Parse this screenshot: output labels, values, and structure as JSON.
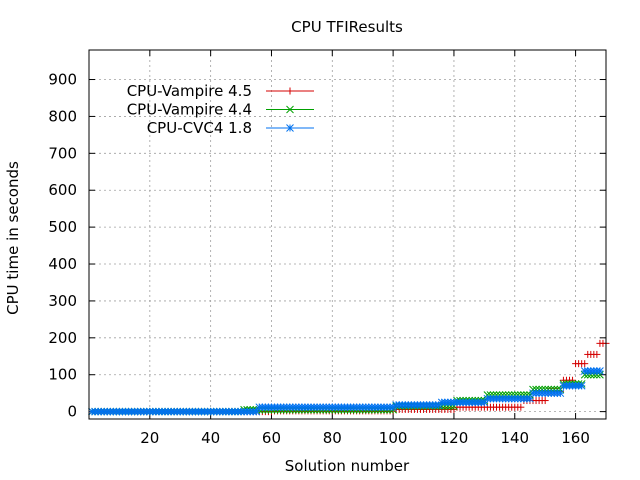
{
  "chart_data": {
    "type": "scatter",
    "title": "CPU TFIResults",
    "xlabel": "Solution number",
    "ylabel": "CPU time in seconds",
    "xlim": [
      0,
      170
    ],
    "ylim": [
      -20,
      980
    ],
    "xticks": [
      20,
      40,
      60,
      80,
      100,
      120,
      140,
      160
    ],
    "yticks": [
      0,
      100,
      200,
      300,
      400,
      500,
      600,
      700,
      800,
      900
    ],
    "grid": true,
    "legend_position": "top-left",
    "series": [
      {
        "name": "CPU-Vampire 4.5",
        "color": "#d40000",
        "marker": "plus",
        "values_by_range": [
          {
            "from": 1,
            "to": 60,
            "y": 0
          },
          {
            "from": 61,
            "to": 100,
            "y": 2
          },
          {
            "from": 101,
            "to": 120,
            "y": 6
          },
          {
            "from": 121,
            "to": 142,
            "y": 12
          },
          {
            "from": 143,
            "to": 150,
            "y": 30
          },
          {
            "from": 151,
            "to": 155,
            "y": 55
          },
          {
            "from": 156,
            "to": 159,
            "y": 85
          },
          {
            "from": 160,
            "to": 163,
            "y": 130
          },
          {
            "from": 164,
            "to": 167,
            "y": 155
          },
          {
            "from": 168,
            "to": 170,
            "y": 185
          }
        ]
      },
      {
        "name": "CPU-Vampire 4.4",
        "color": "#00a000",
        "marker": "cross",
        "values_by_range": [
          {
            "from": 1,
            "to": 50,
            "y": 0
          },
          {
            "from": 51,
            "to": 100,
            "y": 5
          },
          {
            "from": 101,
            "to": 120,
            "y": 15
          },
          {
            "from": 121,
            "to": 130,
            "y": 30
          },
          {
            "from": 131,
            "to": 145,
            "y": 45
          },
          {
            "from": 146,
            "to": 155,
            "y": 60
          },
          {
            "from": 156,
            "to": 162,
            "y": 75
          },
          {
            "from": 163,
            "to": 168,
            "y": 100
          }
        ]
      },
      {
        "name": "CPU-CVC4 1.8",
        "color": "#0072f0",
        "marker": "star",
        "values_by_range": [
          {
            "from": 1,
            "to": 55,
            "y": 0
          },
          {
            "from": 56,
            "to": 100,
            "y": 12
          },
          {
            "from": 101,
            "to": 115,
            "y": 18
          },
          {
            "from": 116,
            "to": 130,
            "y": 25
          },
          {
            "from": 131,
            "to": 145,
            "y": 35
          },
          {
            "from": 146,
            "to": 155,
            "y": 50
          },
          {
            "from": 156,
            "to": 162,
            "y": 70
          },
          {
            "from": 163,
            "to": 168,
            "y": 110
          }
        ]
      }
    ]
  }
}
